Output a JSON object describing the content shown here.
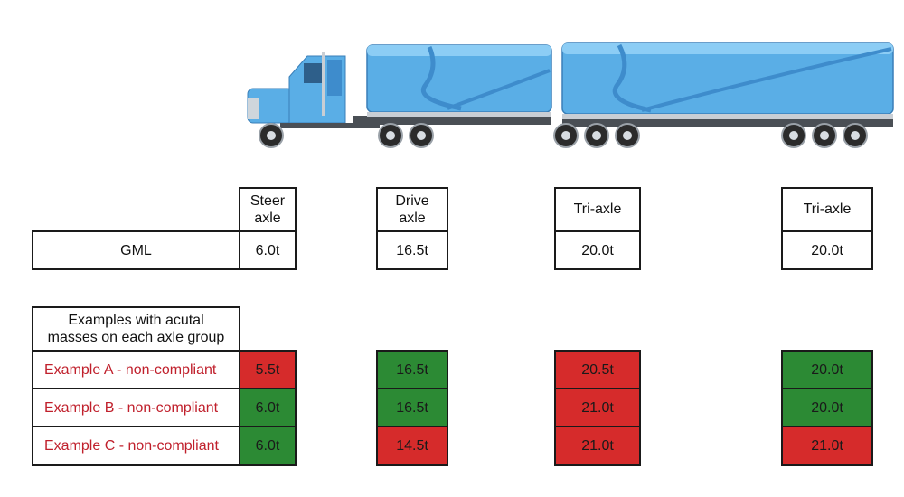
{
  "headers": {
    "steer": "Steer\naxle",
    "drive": "Drive\naxle",
    "tri1": "Tri-axle",
    "tri2": "Tri-axle"
  },
  "gml": {
    "label": "GML",
    "steer": "6.0t",
    "drive": "16.5t",
    "tri1": "20.0t",
    "tri2": "20.0t"
  },
  "examples_title": "Examples with acutal masses on each axle group",
  "examples": [
    {
      "label": "Example A - non-compliant",
      "steer": "5.5t",
      "drive": "16.5t",
      "tri1": "20.5t",
      "tri2": "20.0t",
      "status": {
        "steer": "red",
        "drive": "green",
        "tri1": "red",
        "tri2": "green"
      }
    },
    {
      "label": "Example B - non-compliant",
      "steer": "6.0t",
      "drive": "16.5t",
      "tri1": "21.0t",
      "tri2": "20.0t",
      "status": {
        "steer": "green",
        "drive": "green",
        "tri1": "red",
        "tri2": "green"
      }
    },
    {
      "label": "Example C - non-compliant",
      "steer": "6.0t",
      "drive": "14.5t",
      "tri1": "21.0t",
      "tri2": "21.0t",
      "status": {
        "steer": "green",
        "drive": "red",
        "tri1": "red",
        "tri2": "red"
      }
    }
  ],
  "colors": {
    "compliant": "#2c8a34",
    "non_compliant": "#d62b2b",
    "label_red": "#c0202c",
    "truck_blue": "#5aaee6"
  }
}
